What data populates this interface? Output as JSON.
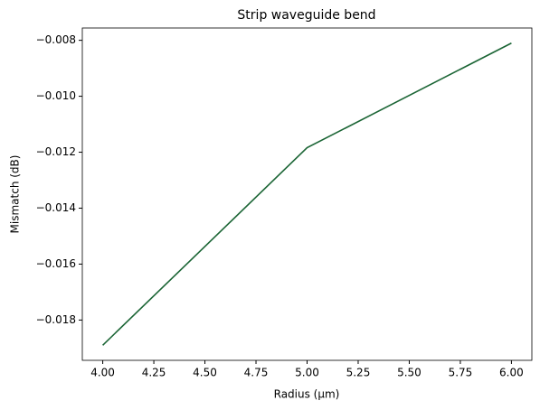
{
  "chart_data": {
    "type": "line",
    "title": "Strip waveguide bend",
    "x_label": "Radius (μm)",
    "y_label": "Mismatch (dB)",
    "x": [
      4,
      5,
      6
    ],
    "series": [
      {
        "name": "Mismatch",
        "color": "#1b6535",
        "values": [
          -0.0189,
          -0.01184,
          -0.0081
        ]
      }
    ],
    "xlim": [
      3.9,
      6.1
    ],
    "xticks": [
      {
        "value": 4,
        "label": "4.00"
      },
      {
        "value": 4.25,
        "label": "4.25"
      },
      {
        "value": 4.5,
        "label": "4.50"
      },
      {
        "value": 4.75,
        "label": "4.75"
      },
      {
        "value": 5,
        "label": "5.00"
      },
      {
        "value": 5.25,
        "label": "5.25"
      },
      {
        "value": 5.5,
        "label": "5.50"
      },
      {
        "value": 5.75,
        "label": "5.75"
      },
      {
        "value": 6,
        "label": "6.00"
      }
    ],
    "ylim": [
      -0.01944,
      -0.00756
    ],
    "yticks": [
      {
        "value": -0.018,
        "label": "−0.018"
      },
      {
        "value": -0.016,
        "label": "−0.016"
      },
      {
        "value": -0.014,
        "label": "−0.014"
      },
      {
        "value": -0.012,
        "label": "−0.012"
      },
      {
        "value": -0.01,
        "label": "−0.010"
      },
      {
        "value": -0.008,
        "label": "−0.008"
      }
    ]
  }
}
